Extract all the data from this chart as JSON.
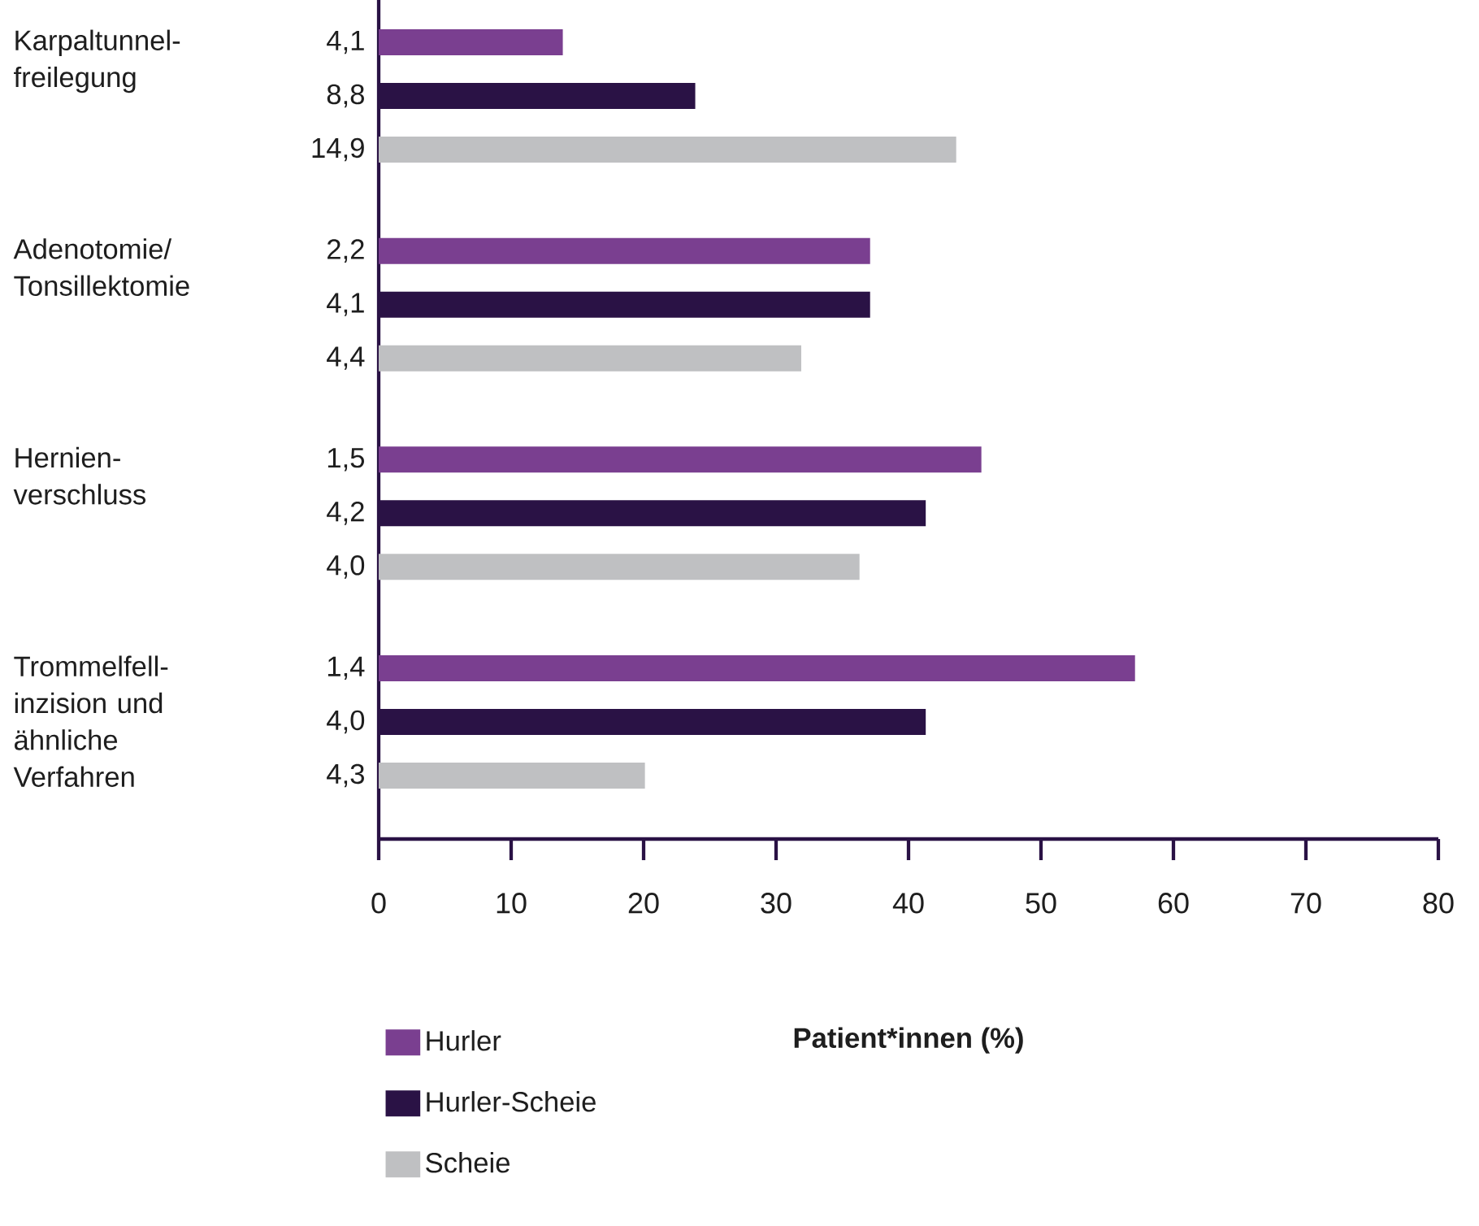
{
  "chart_data": {
    "type": "bar",
    "orientation": "horizontal",
    "xlabel": "Patient*innen (%)",
    "categories": [
      "Karpaltunnel- freilegung",
      "Adenotomie/ Tonsillektomie",
      "Hernien- verschluss",
      "Trommelfell- inzision und ähnliche Verfahren"
    ],
    "series": [
      {
        "name": "Hurler",
        "color": "#7a3f90",
        "values": [
          13.9,
          37.1,
          45.5,
          57.1
        ]
      },
      {
        "name": "Hurler-Scheie",
        "color": "#2a1245",
        "values": [
          23.9,
          37.1,
          41.3,
          41.3
        ]
      },
      {
        "name": "Scheie",
        "color": "#bfc0c2",
        "values": [
          43.6,
          31.9,
          36.3,
          20.1
        ]
      }
    ],
    "annotations": [
      "4,1",
      "8,8",
      "14,9",
      "2,2",
      "4,1",
      "4,4",
      "1,5",
      "4,2",
      "4,0",
      "1,4",
      "4,0",
      "4,3"
    ],
    "xlim": [
      0,
      80
    ],
    "xticks": [
      0,
      10,
      20,
      30,
      40,
      50,
      60,
      70,
      80
    ],
    "legend": "bottom",
    "grid": false
  }
}
